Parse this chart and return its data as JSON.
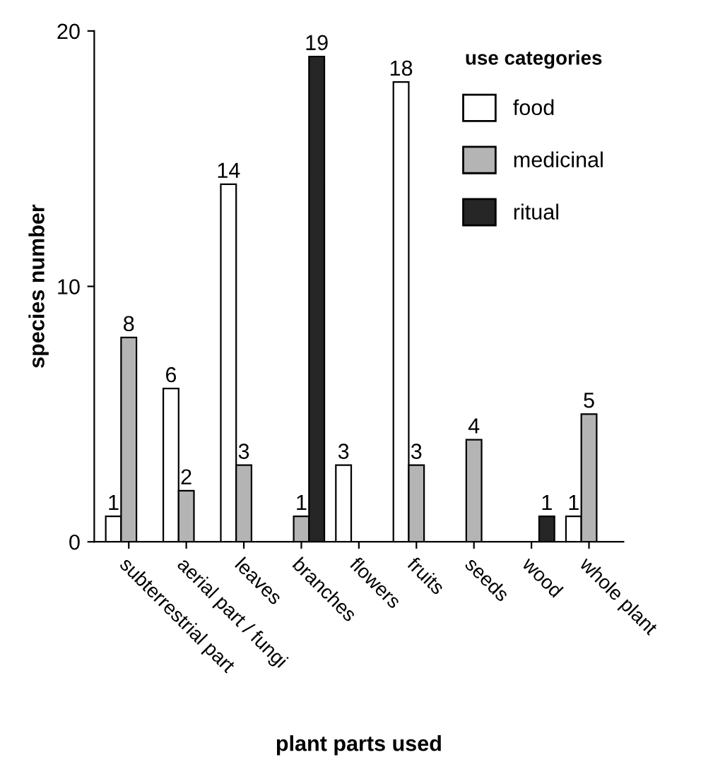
{
  "chart_data": {
    "type": "bar",
    "xlabel": "plant parts used",
    "ylabel": "species number",
    "legend_title": "use categories",
    "categories": [
      "subterrestrial part",
      "aerial part / fungi",
      "leaves",
      "branches",
      "flowers",
      "fruits",
      "seeds",
      "wood",
      "whole plant"
    ],
    "series": [
      {
        "name": "food",
        "color": "#ffffff",
        "values": [
          1,
          6,
          14,
          null,
          3,
          18,
          null,
          null,
          1
        ]
      },
      {
        "name": "medicinal",
        "color": "#b4b4b4",
        "values": [
          8,
          2,
          3,
          1,
          null,
          3,
          4,
          null,
          5
        ]
      },
      {
        "name": "ritual",
        "color": "#262626",
        "values": [
          null,
          null,
          null,
          19,
          null,
          null,
          null,
          1,
          null
        ]
      }
    ],
    "ylim": [
      0,
      20
    ],
    "yticks": [
      0,
      10,
      20
    ],
    "data_labels": true,
    "grid": false,
    "legend": "top right"
  }
}
